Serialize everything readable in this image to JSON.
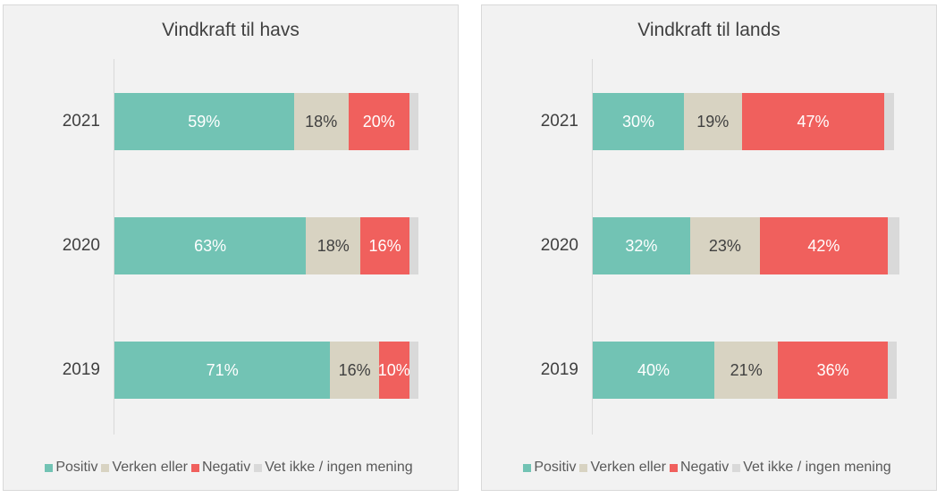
{
  "colors": {
    "positiv": "#72c3b4",
    "verken": "#d8d3c2",
    "negativ": "#f0605d",
    "vet_ikke": "#d9d9d9",
    "label_light": "#ffffff",
    "label_dark": "#404040"
  },
  "legend": {
    "positiv": "Positiv",
    "verken": "Verken eller",
    "negativ": "Negativ",
    "vet_ikke": "Vet ikke / ingen mening"
  },
  "chart_data": [
    {
      "type": "bar",
      "orientation": "horizontal",
      "stacked": true,
      "title": "Vindkraft til havs",
      "categories": [
        "2021",
        "2020",
        "2019"
      ],
      "series": [
        {
          "name": "Positiv",
          "key": "positiv",
          "values": [
            59,
            63,
            71
          ],
          "labels": [
            "59%",
            "63%",
            "71%"
          ]
        },
        {
          "name": "Verken eller",
          "key": "verken",
          "values": [
            18,
            18,
            16
          ],
          "labels": [
            "18%",
            "18%",
            "16%"
          ]
        },
        {
          "name": "Negativ",
          "key": "negativ",
          "values": [
            20,
            16,
            10
          ],
          "labels": [
            "20%",
            "16%",
            "10%"
          ]
        },
        {
          "name": "Vet ikke / ingen mening",
          "key": "vet_ikke",
          "values": [
            3,
            3,
            3
          ],
          "labels": [
            "",
            "",
            ""
          ]
        }
      ],
      "xlim": [
        0,
        100
      ],
      "legend_position": "bottom"
    },
    {
      "type": "bar",
      "orientation": "horizontal",
      "stacked": true,
      "title": "Vindkraft til lands",
      "categories": [
        "2021",
        "2020",
        "2019"
      ],
      "series": [
        {
          "name": "Positiv",
          "key": "positiv",
          "values": [
            30,
            32,
            40
          ],
          "labels": [
            "30%",
            "32%",
            "40%"
          ]
        },
        {
          "name": "Verken eller",
          "key": "verken",
          "values": [
            19,
            23,
            21
          ],
          "labels": [
            "19%",
            "23%",
            "21%"
          ]
        },
        {
          "name": "Negativ",
          "key": "negativ",
          "values": [
            47,
            42,
            36
          ],
          "labels": [
            "47%",
            "42%",
            "36%"
          ]
        },
        {
          "name": "Vet ikke / ingen mening",
          "key": "vet_ikke",
          "values": [
            3,
            4,
            3
          ],
          "labels": [
            "",
            "",
            ""
          ]
        }
      ],
      "xlim": [
        0,
        100
      ],
      "legend_position": "bottom"
    }
  ]
}
